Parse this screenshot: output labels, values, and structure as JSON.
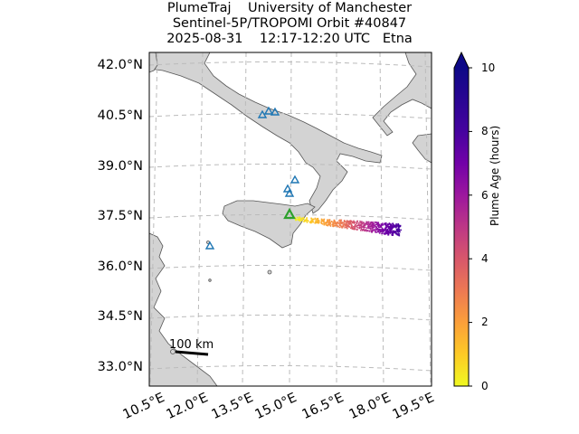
{
  "title": {
    "line1": "PlumeTraj    University of Manchester",
    "line2": "Sentinel-5P/TROPOMI Orbit #40847",
    "line3": "2025-08-31    12:17-12:20 UTC   Etna"
  },
  "lat_ticks": [
    "42.0°N",
    "40.5°N",
    "39.0°N",
    "37.5°N",
    "36.0°N",
    "34.5°N",
    "33.0°N"
  ],
  "lon_ticks": [
    "10.5°E",
    "12.0°E",
    "13.5°E",
    "15.0°E",
    "16.5°E",
    "18.0°E",
    "19.5°E"
  ],
  "colorbar": {
    "label": "Plume Age (hours)",
    "ticks": [
      "0",
      "2",
      "4",
      "6",
      "8",
      "10"
    ],
    "range": [
      0,
      10
    ],
    "colormap": "plasma_r"
  },
  "scale_bar": {
    "label": "100 km"
  },
  "colors": {
    "land": "#d3d3d3",
    "sea": "#ffffff",
    "coast": "#555555",
    "grid": "#bbbbbb",
    "volcano_marker": "#1f77b4",
    "target_volcano": "#2ca02c"
  },
  "volcanoes": [
    {
      "name": "volcano-1"
    },
    {
      "name": "volcano-2"
    },
    {
      "name": "volcano-3"
    },
    {
      "name": "volcano-4"
    },
    {
      "name": "volcano-5"
    },
    {
      "name": "volcano-6"
    },
    {
      "name": "volcano-7"
    }
  ],
  "target_volcano": {
    "name": "Etna"
  }
}
